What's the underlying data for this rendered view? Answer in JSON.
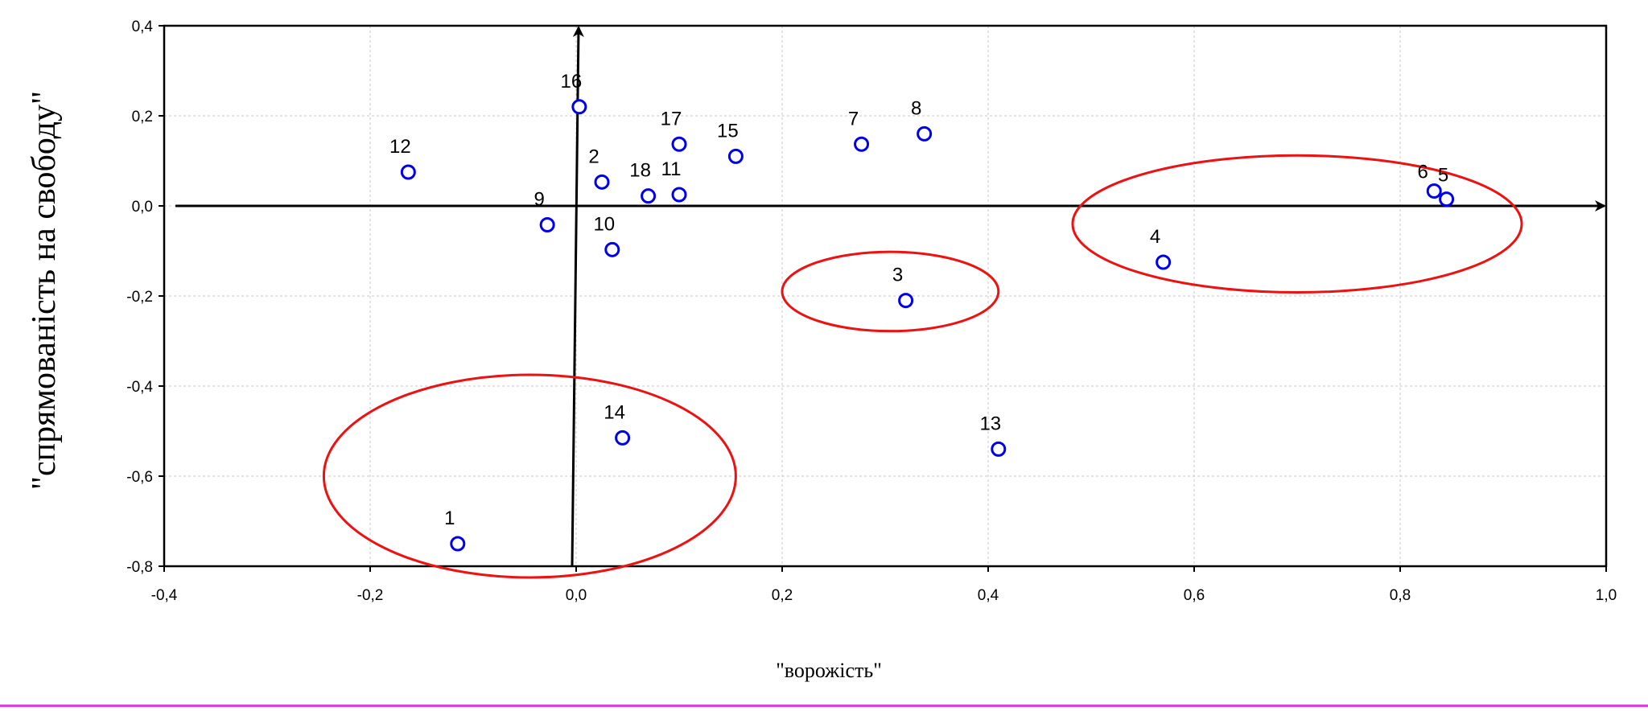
{
  "chart_data": {
    "type": "scatter",
    "xlabel": "\"ворожість\"",
    "ylabel": "\"спрямованість на свободу\"",
    "xlim": [
      -0.4,
      1.0
    ],
    "ylim": [
      -0.8,
      0.4
    ],
    "x_ticks": [
      "-0,4",
      "-0,2",
      "0,0",
      "0,2",
      "0,4",
      "0,6",
      "0,8",
      "1,0"
    ],
    "x_tick_values": [
      -0.4,
      -0.2,
      0.0,
      0.2,
      0.4,
      0.6,
      0.8,
      1.0
    ],
    "y_ticks": [
      "0,4",
      "0,2",
      "0,0",
      "-0,2",
      "-0,4",
      "-0,6",
      "-0,8"
    ],
    "y_tick_values": [
      0.4,
      0.2,
      0.0,
      -0.2,
      -0.4,
      -0.6,
      -0.8
    ],
    "grid": true,
    "marker_color": "#0000ee",
    "ellipse_color": "#ee1111",
    "points": [
      {
        "label": "1",
        "x": -0.115,
        "y": -0.75
      },
      {
        "label": "2",
        "x": 0.025,
        "y": 0.053
      },
      {
        "label": "3",
        "x": 0.32,
        "y": -0.21
      },
      {
        "label": "4",
        "x": 0.57,
        "y": -0.125
      },
      {
        "label": "5",
        "x": 0.845,
        "y": 0.015
      },
      {
        "label": "6",
        "x": 0.833,
        "y": 0.033
      },
      {
        "label": "7",
        "x": 0.277,
        "y": 0.137
      },
      {
        "label": "8",
        "x": 0.338,
        "y": 0.16
      },
      {
        "label": "9",
        "x": -0.028,
        "y": -0.042
      },
      {
        "label": "10",
        "x": 0.035,
        "y": -0.097
      },
      {
        "label": "11",
        "x": 0.1,
        "y": 0.025
      },
      {
        "label": "12",
        "x": -0.163,
        "y": 0.075
      },
      {
        "label": "13",
        "x": 0.41,
        "y": -0.54
      },
      {
        "label": "14",
        "x": 0.045,
        "y": -0.515
      },
      {
        "label": "15",
        "x": 0.155,
        "y": 0.11
      },
      {
        "label": "16",
        "x": 0.003,
        "y": 0.22
      },
      {
        "label": "17",
        "x": 0.1,
        "y": 0.137
      },
      {
        "label": "18",
        "x": 0.07,
        "y": 0.022
      }
    ],
    "ellipses": [
      {
        "cx": -0.045,
        "cy": -0.6,
        "rx": 0.2,
        "ry": 0.225
      },
      {
        "cx": 0.305,
        "cy": -0.19,
        "rx": 0.105,
        "ry": 0.088
      },
      {
        "cx": 0.7,
        "cy": -0.04,
        "rx": 0.218,
        "ry": 0.152
      }
    ]
  }
}
